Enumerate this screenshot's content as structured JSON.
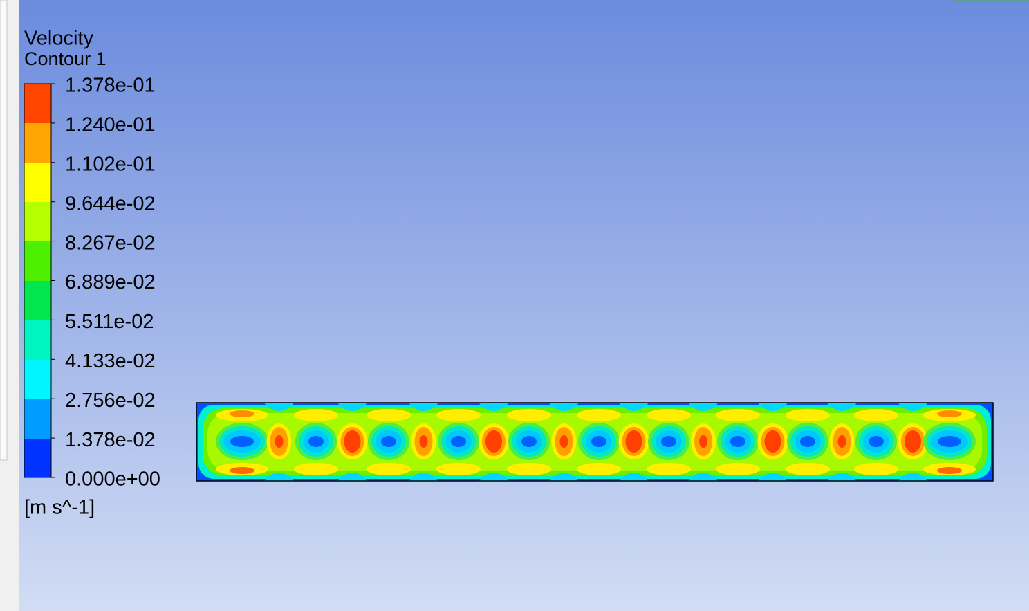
{
  "legend": {
    "title": "Velocity",
    "subtitle": "Contour 1",
    "labels": [
      "1.378e-01",
      "1.240e-01",
      "1.102e-01",
      "9.644e-02",
      "8.267e-02",
      "6.889e-02",
      "5.511e-02",
      "4.133e-02",
      "2.756e-02",
      "1.378e-02",
      "0.000e+00"
    ],
    "unit": "[m s^-1]"
  }
}
